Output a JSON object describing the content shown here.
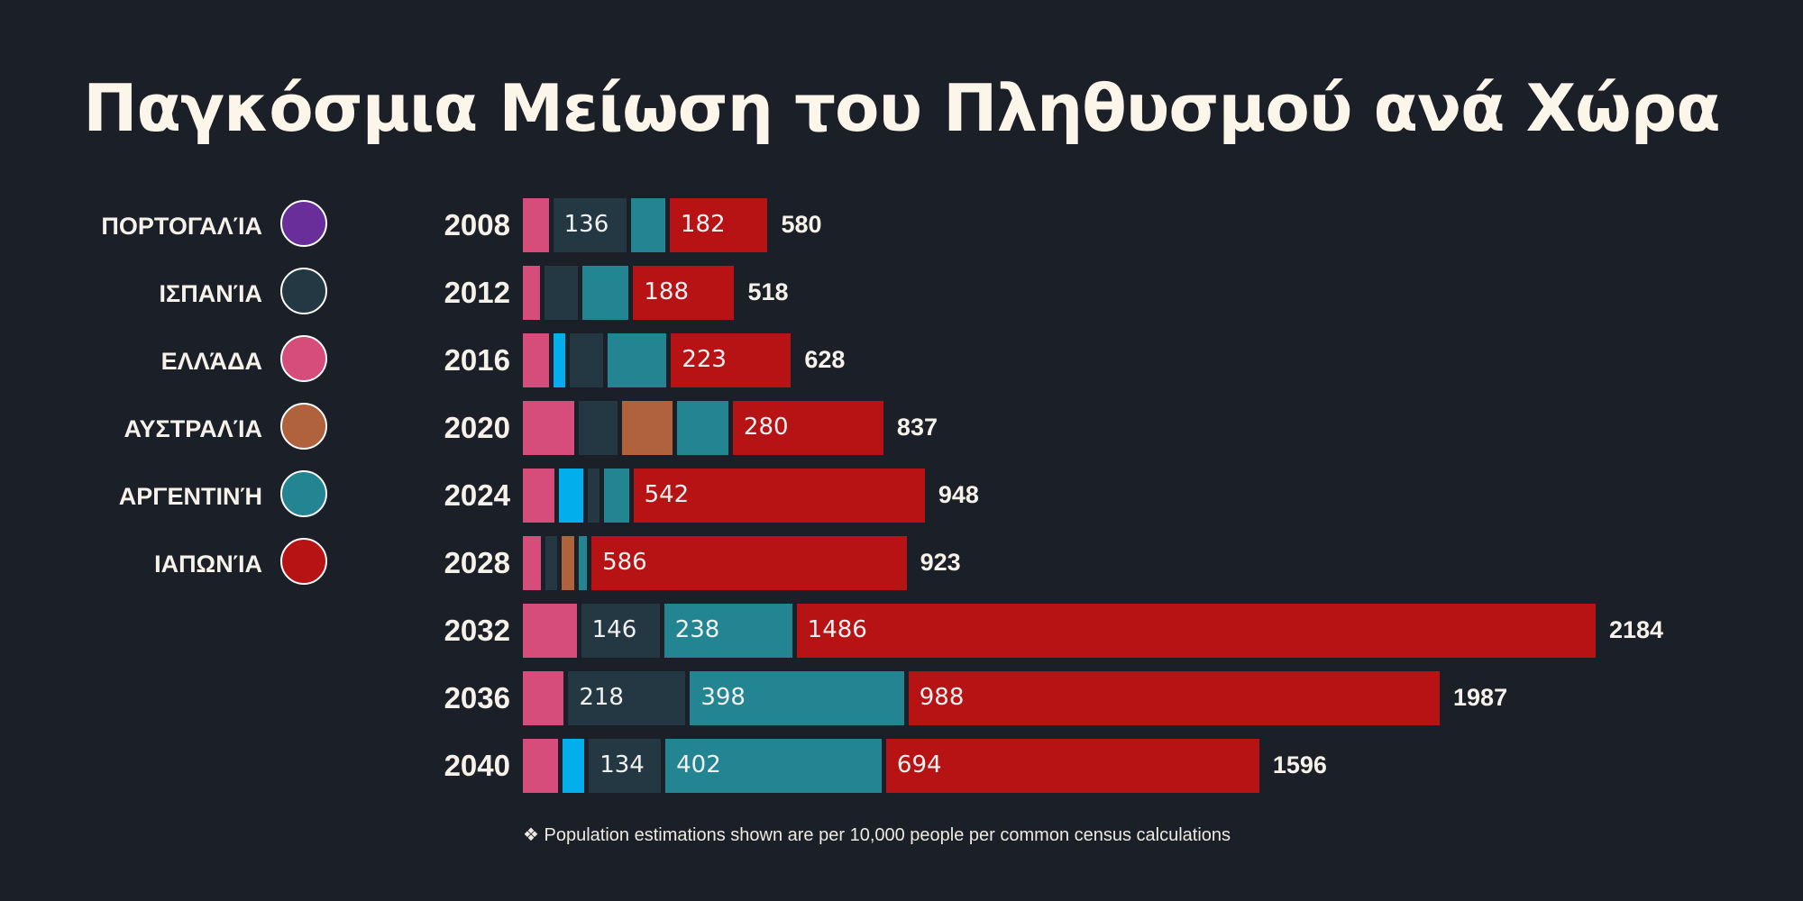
{
  "chart_data": {
    "type": "bar",
    "orientation": "horizontal",
    "stacked": true,
    "title": "Παγκόσμια Μείωση του Πληθυσμού ανά Χώρα",
    "footnote": "❖ Population estimations shown are per 10,000 people per common census calculations",
    "legend": [
      {
        "key": "portugal",
        "label": "ΠΟΡΤΟΓΑΛΊΑ",
        "color": "#6a2e9a"
      },
      {
        "key": "spain",
        "label": "ΙΣΠΑΝΊΑ",
        "color": "#243843"
      },
      {
        "key": "greece",
        "label": "ΕΛΛΆΔΑ",
        "color": "#d64d7b"
      },
      {
        "key": "australia",
        "label": "ΑΥΣΤΡΑΛΊΑ",
        "color": "#b0623d"
      },
      {
        "key": "argentina",
        "label": "ΑΡΓΕΝΤΙΝΉ",
        "color": "#238592"
      },
      {
        "key": "japan",
        "label": "ΙΑΠΩΝΊΑ",
        "color": "#b81314"
      }
    ],
    "extra_colors": {
      "bright_blue": "#02aeeb"
    },
    "rows": [
      {
        "year": "2008",
        "total": "580",
        "segments": [
          {
            "color": "#d64d7b",
            "value": 48
          },
          {
            "color": "#243843",
            "value": 136,
            "label": "136"
          },
          {
            "color": "#238592",
            "value": 64
          },
          {
            "color": "#b81314",
            "value": 182,
            "label": "182"
          }
        ]
      },
      {
        "year": "2012",
        "total": "518",
        "segments": [
          {
            "color": "#d64d7b",
            "value": 32
          },
          {
            "color": "#243843",
            "value": 62
          },
          {
            "color": "#238592",
            "value": 86
          },
          {
            "color": "#b81314",
            "value": 188,
            "label": "188"
          }
        ]
      },
      {
        "year": "2016",
        "total": "628",
        "segments": [
          {
            "color": "#d64d7b",
            "value": 48
          },
          {
            "color": "#02aeeb",
            "value": 22
          },
          {
            "color": "#243843",
            "value": 62
          },
          {
            "color": "#238592",
            "value": 110
          },
          {
            "color": "#b81314",
            "value": 223,
            "label": "223"
          }
        ]
      },
      {
        "year": "2020",
        "total": "837",
        "segments": [
          {
            "color": "#d64d7b",
            "value": 95
          },
          {
            "color": "#243843",
            "value": 72
          },
          {
            "color": "#b0623d",
            "value": 95
          },
          {
            "color": "#238592",
            "value": 95
          },
          {
            "color": "#b81314",
            "value": 280,
            "label": "280"
          }
        ]
      },
      {
        "year": "2024",
        "total": "948",
        "segments": [
          {
            "color": "#d64d7b",
            "value": 58
          },
          {
            "color": "#02aeeb",
            "value": 46
          },
          {
            "color": "#243843",
            "value": 22
          },
          {
            "color": "#238592",
            "value": 46
          },
          {
            "color": "#b81314",
            "value": 542,
            "label": "542"
          }
        ]
      },
      {
        "year": "2028",
        "total": "923",
        "segments": [
          {
            "color": "#d64d7b",
            "value": 34
          },
          {
            "color": "#243843",
            "value": 22
          },
          {
            "color": "#b0623d",
            "value": 22
          },
          {
            "color": "#238592",
            "value": 16
          },
          {
            "color": "#b81314",
            "value": 586,
            "label": "586"
          }
        ]
      },
      {
        "year": "2032",
        "total": "2184",
        "segments": [
          {
            "color": "#d64d7b",
            "value": 100
          },
          {
            "color": "#243843",
            "value": 146,
            "label": "146"
          },
          {
            "color": "#238592",
            "value": 238,
            "label": "238"
          },
          {
            "color": "#b81314",
            "value": 1486,
            "label": "1486"
          }
        ]
      },
      {
        "year": "2036",
        "total": "1987",
        "segments": [
          {
            "color": "#d64d7b",
            "value": 76
          },
          {
            "color": "#243843",
            "value": 218,
            "label": "218"
          },
          {
            "color": "#238592",
            "value": 398,
            "label": "398"
          },
          {
            "color": "#b81314",
            "value": 988,
            "label": "988"
          }
        ]
      },
      {
        "year": "2040",
        "total": "1596",
        "segments": [
          {
            "color": "#d64d7b",
            "value": 66
          },
          {
            "color": "#02aeeb",
            "value": 40
          },
          {
            "color": "#243843",
            "value": 134,
            "label": "134"
          },
          {
            "color": "#238592",
            "value": 402,
            "label": "402"
          },
          {
            "color": "#b81314",
            "value": 694,
            "label": "694"
          }
        ]
      }
    ]
  }
}
